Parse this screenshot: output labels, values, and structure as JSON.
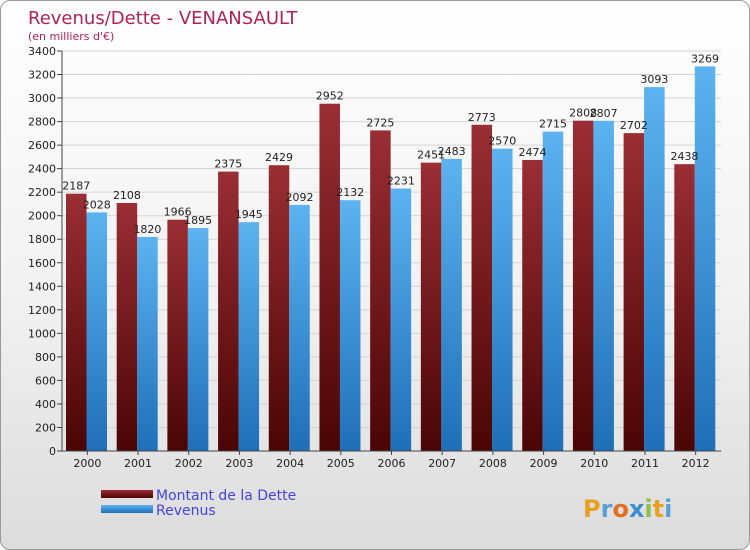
{
  "chart_data": {
    "type": "bar",
    "title": "Revenus/Dette - VENANSAULT",
    "subtitle": "(en milliers d'€)",
    "categories": [
      "2000",
      "2001",
      "2002",
      "2003",
      "2004",
      "2005",
      "2006",
      "2007",
      "2008",
      "2009",
      "2010",
      "2011",
      "2012"
    ],
    "series": [
      {
        "name": "Montant de la Dette",
        "color": "#7a1a1a",
        "values": [
          2187,
          2108,
          1966,
          2375,
          2429,
          2952,
          2725,
          2451,
          2773,
          2474,
          2808,
          2702,
          2438
        ]
      },
      {
        "name": "Revenus",
        "color": "#3a97e0",
        "values": [
          2028,
          1820,
          1895,
          1945,
          2092,
          2132,
          2231,
          2483,
          2570,
          2715,
          2807,
          3093,
          3269
        ]
      }
    ],
    "ylim": [
      0,
      3400
    ],
    "ytick_step": 200,
    "grid": true,
    "legend_position": "bottom-left"
  },
  "logo_text": "Proxiti"
}
